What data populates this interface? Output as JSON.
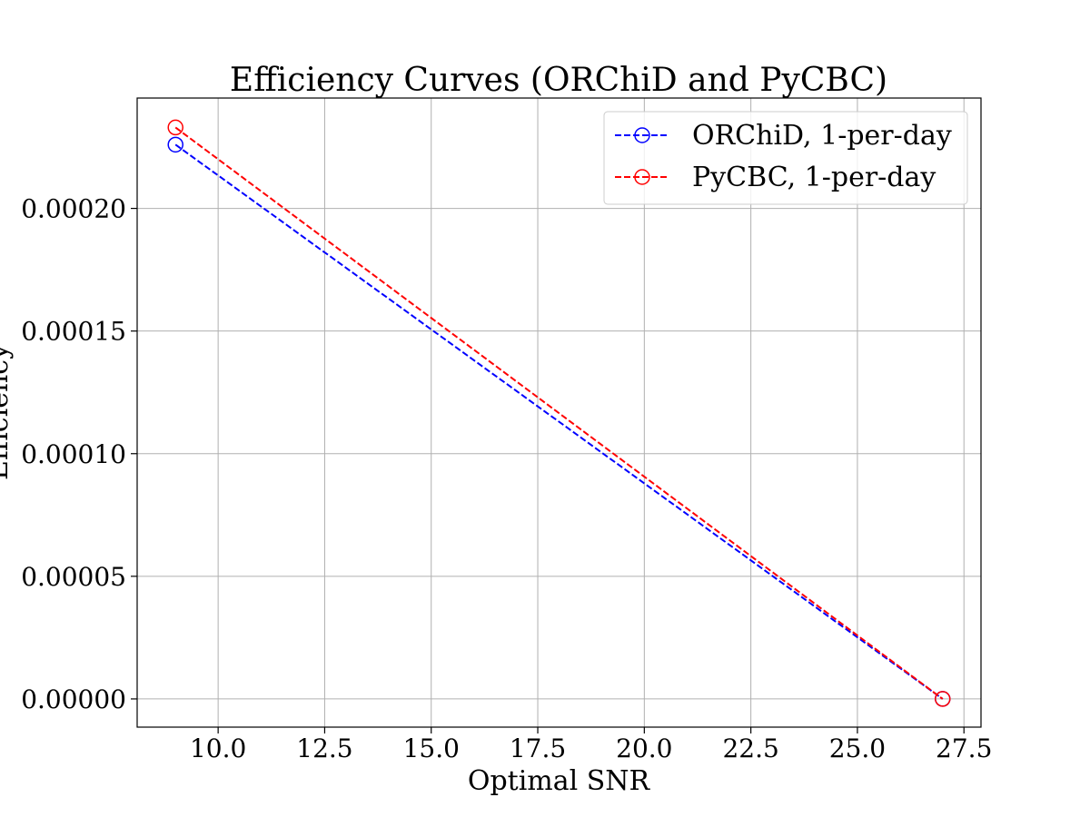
{
  "chart_data": {
    "type": "line",
    "title": "Efficiency Curves (ORChiD and PyCBC)",
    "xlabel": "Optimal SNR",
    "ylabel": "Efficiency",
    "xlim": [
      8.1,
      27.9
    ],
    "ylim": [
      -1.15e-05,
      0.000245
    ],
    "xticks": [
      10.0,
      12.5,
      15.0,
      17.5,
      20.0,
      22.5,
      25.0,
      27.5
    ],
    "xtick_labels": [
      "10.0",
      "12.5",
      "15.0",
      "17.5",
      "20.0",
      "22.5",
      "25.0",
      "27.5"
    ],
    "yticks": [
      0.0,
      5e-05,
      0.0001,
      0.00015,
      0.0002
    ],
    "ytick_labels": [
      "0.00000",
      "0.00005",
      "0.00010",
      "0.00015",
      "0.00020"
    ],
    "grid": true,
    "legend_position": "top-right",
    "series": [
      {
        "name": "ORChiD, 1-per-day",
        "color": "#0000ff",
        "line_style": "dashed",
        "marker": "open-circle",
        "x": [
          9,
          27
        ],
        "y": [
          0.000226,
          0.0
        ]
      },
      {
        "name": "PyCBC, 1-per-day",
        "color": "#ff0000",
        "line_style": "dashed",
        "marker": "open-circle",
        "x": [
          9,
          27
        ],
        "y": [
          0.000233,
          0.0
        ]
      }
    ]
  }
}
